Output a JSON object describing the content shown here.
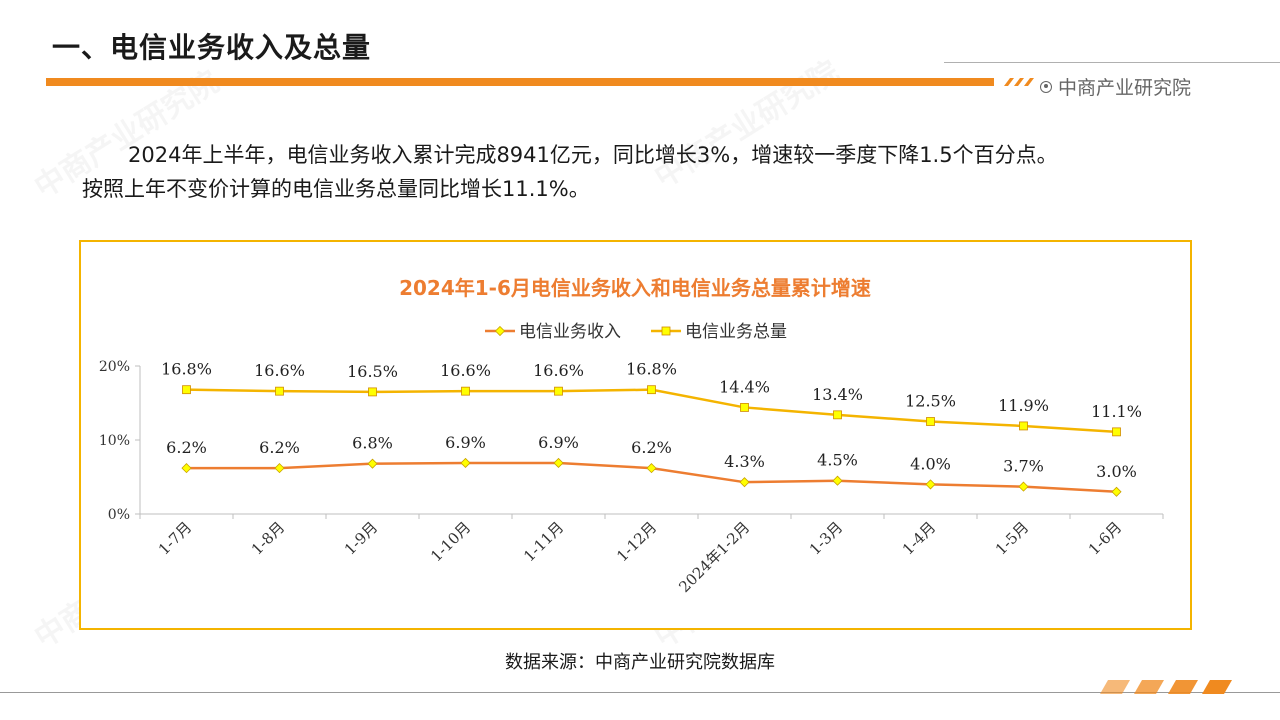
{
  "header": {
    "title": "一、电信业务收入及总量",
    "brand": "中商产业研究院"
  },
  "paragraph": {
    "line1": "2024年上半年，电信业务收入累计完成8941亿元，同比增长3%，增速较一季度下降1.5个百分点。",
    "line2": "按照上年不变价计算的电信业务总量同比增长11.1%。"
  },
  "source": "数据来源：中商产业研究院数据库",
  "watermark": "中商产业研究院",
  "colors": {
    "accent": "#f08a1f",
    "series_revenue": "#ed7d31",
    "series_volume": "#f4b400",
    "marker_fill": "#ffff00",
    "title_color": "#ed7d31"
  },
  "chart_data": {
    "type": "line",
    "title": "2024年1-6月电信业务收入和电信业务总量累计增速",
    "categories": [
      "1-7月",
      "1-8月",
      "1-9月",
      "1-10月",
      "1-11月",
      "1-12月",
      "2024年1-2月",
      "1-3月",
      "1-4月",
      "1-5月",
      "1-6月"
    ],
    "series": [
      {
        "name": "电信业务收入",
        "values": [
          6.2,
          6.2,
          6.8,
          6.9,
          6.9,
          6.2,
          4.3,
          4.5,
          4.0,
          3.7,
          3.0
        ],
        "marker": "diamond"
      },
      {
        "name": "电信业务总量",
        "values": [
          16.8,
          16.6,
          16.5,
          16.6,
          16.6,
          16.8,
          14.4,
          13.4,
          12.5,
          11.9,
          11.1
        ],
        "marker": "square"
      }
    ],
    "data_labels": {
      "电信业务收入": [
        "6.2%",
        "6.2%",
        "6.8%",
        "6.9%",
        "6.9%",
        "6.2%",
        "4.3%",
        "4.5%",
        "4.0%",
        "3.7%",
        "3.0%"
      ],
      "电信业务总量": [
        "16.8%",
        "16.6%",
        "16.5%",
        "16.6%",
        "16.6%",
        "16.8%",
        "14.4%",
        "13.4%",
        "12.5%",
        "11.9%",
        "11.1%"
      ]
    },
    "yticks": [
      "0%",
      "10%",
      "20%"
    ],
    "ylim": [
      0,
      20
    ],
    "legend_position": "top-center",
    "grid": false
  }
}
